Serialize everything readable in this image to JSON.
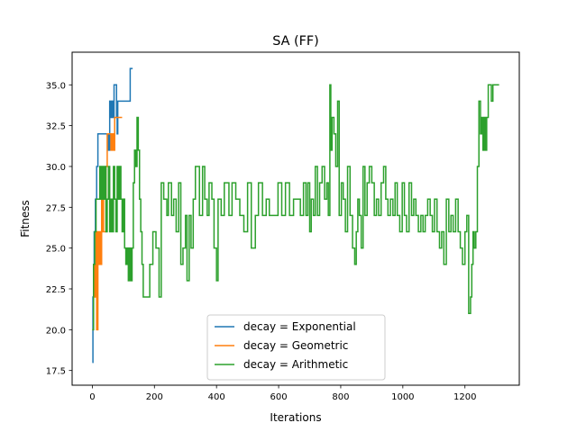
{
  "chart_data": {
    "type": "line",
    "title": "SA (FF)",
    "xlabel": "Iterations",
    "ylabel": "Fitness",
    "xlim": [
      -65,
      1375
    ],
    "ylim": [
      16.6,
      37.0
    ],
    "xticks": [
      0,
      200,
      400,
      600,
      800,
      1000,
      1200
    ],
    "xtick_labels": [
      "0",
      "200",
      "400",
      "600",
      "800",
      "1000",
      "1200"
    ],
    "yticks": [
      17.5,
      20.0,
      22.5,
      25.0,
      27.5,
      30.0,
      32.5,
      35.0
    ],
    "ytick_labels": [
      "17.5",
      "20.0",
      "22.5",
      "25.0",
      "27.5",
      "30.0",
      "32.5",
      "35.0"
    ],
    "grid": false,
    "legend_position": "lower-center",
    "series": [
      {
        "name": "decay = Exponential",
        "color": "#1f77b4",
        "x": [
          0,
          2,
          4,
          6,
          10,
          14,
          18,
          22,
          26,
          30,
          34,
          40,
          46,
          52,
          56,
          60,
          64,
          66,
          70,
          74,
          78,
          80,
          82,
          84,
          88,
          92,
          96,
          100,
          106,
          112,
          118,
          122,
          126,
          130
        ],
        "y": [
          18,
          22,
          24,
          26,
          28,
          30,
          32,
          32,
          32,
          32,
          32,
          32,
          32,
          31,
          34,
          33,
          34,
          33,
          35,
          35,
          33,
          32,
          34,
          34,
          34,
          34,
          34,
          34,
          34,
          34,
          34,
          36,
          36,
          36
        ]
      },
      {
        "name": "decay = Geometric",
        "color": "#ff7f0e",
        "x": [
          0,
          4,
          8,
          12,
          14,
          18,
          22,
          26,
          28,
          30,
          32,
          34,
          36,
          40,
          44,
          48,
          52,
          56,
          60,
          64,
          66,
          68,
          70,
          72,
          76,
          80,
          84,
          88,
          92,
          96
        ],
        "y": [
          20,
          24,
          22,
          26,
          20,
          26,
          24,
          26,
          24,
          28,
          26,
          28,
          26,
          26,
          30,
          32,
          32,
          32,
          31,
          32,
          31,
          32,
          31,
          33,
          33,
          33,
          33,
          33,
          33,
          33
        ]
      },
      {
        "name": "decay = Arithmetic",
        "color": "#2ca02c",
        "x": [
          0,
          4,
          8,
          12,
          16,
          20,
          24,
          28,
          32,
          36,
          40,
          44,
          48,
          52,
          56,
          60,
          64,
          68,
          72,
          76,
          80,
          84,
          88,
          92,
          96,
          100,
          104,
          108,
          112,
          116,
          120,
          124,
          128,
          132,
          136,
          140,
          144,
          148,
          152,
          156,
          160,
          164,
          168,
          175,
          185,
          195,
          205,
          215,
          222,
          230,
          240,
          245,
          255,
          262,
          270,
          278,
          285,
          292,
          300,
          305,
          312,
          318,
          325,
          332,
          340,
          345,
          355,
          362,
          370,
          376,
          385,
          392,
          400,
          405,
          415,
          425,
          432,
          440,
          450,
          462,
          475,
          488,
          500,
          512,
          525,
          535,
          548,
          560,
          570,
          585,
          598,
          610,
          622,
          635,
          648,
          660,
          670,
          680,
          688,
          694,
          700,
          705,
          712,
          718,
          725,
          732,
          740,
          748,
          755,
          760,
          765,
          768,
          772,
          778,
          784,
          790,
          795,
          802,
          808,
          815,
          822,
          830,
          838,
          845,
          850,
          855,
          860,
          866,
          872,
          878,
          885,
          892,
          900,
          908,
          915,
          922,
          930,
          938,
          945,
          952,
          960,
          968,
          975,
          982,
          990,
          998,
          1005,
          1012,
          1020,
          1028,
          1035,
          1042,
          1050,
          1058,
          1065,
          1072,
          1080,
          1088,
          1095,
          1102,
          1110,
          1118,
          1125,
          1132,
          1140,
          1148,
          1155,
          1162,
          1170,
          1178,
          1185,
          1192,
          1200,
          1206,
          1212,
          1218,
          1222,
          1226,
          1230,
          1235,
          1240,
          1245,
          1250,
          1254,
          1258,
          1262,
          1266,
          1270,
          1275,
          1280,
          1285,
          1290,
          1295,
          1300,
          1305,
          1310
        ],
        "y": [
          20,
          24,
          26,
          28,
          28,
          28,
          30,
          28,
          30,
          28,
          30,
          26,
          28,
          30,
          26,
          28,
          26,
          30,
          28,
          26,
          30,
          28,
          30,
          28,
          26,
          28,
          25,
          24,
          25,
          23,
          25,
          23,
          25,
          29,
          31,
          30,
          33,
          31,
          28,
          26,
          24,
          22,
          22,
          22,
          24,
          26,
          25,
          22,
          29,
          28,
          27,
          29,
          27,
          28,
          26,
          29,
          24,
          25,
          27,
          23,
          27,
          25,
          28,
          30,
          30,
          27,
          30,
          28,
          27,
          29,
          28,
          25,
          23,
          28,
          27,
          29,
          29,
          27,
          29,
          28,
          27,
          26,
          29,
          25,
          27,
          29,
          27,
          28,
          27,
          27,
          29,
          27,
          29,
          27,
          28,
          28,
          27,
          29,
          27,
          29,
          26,
          28,
          27,
          30,
          27,
          29,
          30,
          28,
          29,
          27,
          35,
          31,
          33,
          32,
          30,
          34,
          27,
          29,
          28,
          26,
          30,
          27,
          25,
          24,
          26,
          28,
          27,
          25,
          30,
          27,
          29,
          30,
          29,
          27,
          28,
          27,
          29,
          30,
          28,
          27,
          28,
          27,
          29,
          27,
          26,
          29,
          27,
          26,
          29,
          27,
          28,
          27,
          26,
          27,
          26,
          27,
          28,
          27,
          26,
          28,
          26,
          25,
          26,
          24,
          28,
          26,
          27,
          26,
          28,
          26,
          25,
          24,
          26,
          27,
          21,
          22,
          24,
          26,
          25,
          26,
          30,
          34,
          32,
          33,
          31,
          33,
          31,
          33,
          35,
          35,
          34,
          35,
          35,
          35,
          35,
          35
        ]
      }
    ]
  }
}
